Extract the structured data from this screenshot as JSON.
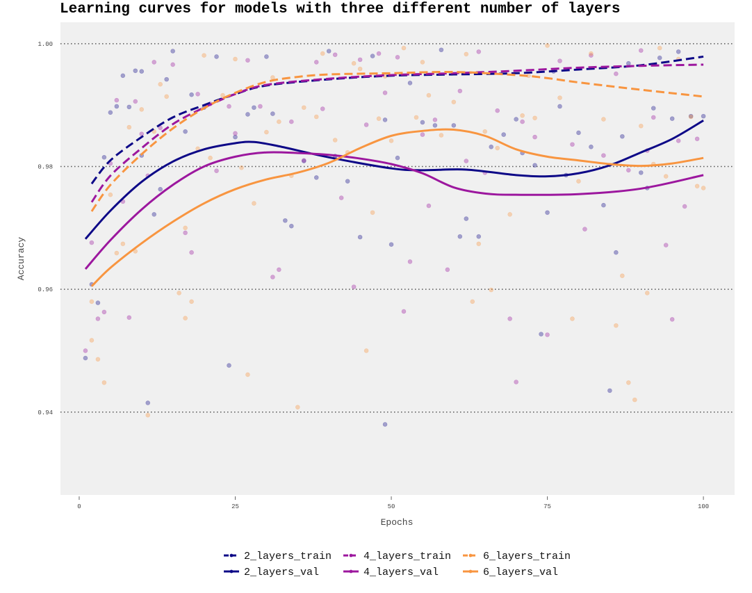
{
  "chart_data": {
    "type": "line",
    "title": "Learning curves for models with three different number of layers",
    "xlabel": "Epochs",
    "ylabel": "Accuracy",
    "xlim": [
      -3,
      105
    ],
    "ylim": [
      0.9265,
      1.0035
    ],
    "x_ticks": [
      0,
      25,
      50,
      75,
      100
    ],
    "x_tick_labels": [
      "0",
      "25",
      "50",
      "75",
      "100"
    ],
    "y_ticks": [
      0.94,
      0.96,
      0.98,
      1.0
    ],
    "y_tick_labels": [
      "0.94",
      "0.96",
      "0.98",
      "1.00"
    ],
    "grid": "horizontal dotted",
    "legend_position": "bottom",
    "series": [
      {
        "name": "2_layers_train",
        "color": "#0d0887",
        "dash": "dashed",
        "x": [
          2,
          5,
          10,
          15,
          20,
          25,
          30,
          40,
          50,
          60,
          70,
          80,
          90,
          100
        ],
        "y": [
          0.9772,
          0.981,
          0.9848,
          0.988,
          0.99,
          0.9918,
          0.9932,
          0.9942,
          0.9948,
          0.995,
          0.9952,
          0.9958,
          0.9965,
          0.9979
        ]
      },
      {
        "name": "4_layers_train",
        "color": "#9c179e",
        "dash": "dashed",
        "x": [
          2,
          5,
          10,
          15,
          20,
          25,
          30,
          40,
          50,
          60,
          70,
          80,
          90,
          100
        ],
        "y": [
          0.9742,
          0.9785,
          0.983,
          0.9869,
          0.9896,
          0.9918,
          0.9933,
          0.9943,
          0.9949,
          0.9952,
          0.9956,
          0.9961,
          0.9964,
          0.9966
        ]
      },
      {
        "name": "6_layers_train",
        "color": "#f89540",
        "dash": "dashed",
        "x": [
          2,
          5,
          10,
          15,
          20,
          25,
          30,
          35,
          40,
          50,
          60,
          70,
          75,
          80,
          90,
          100
        ],
        "y": [
          0.9727,
          0.977,
          0.982,
          0.9862,
          0.9895,
          0.992,
          0.9938,
          0.9946,
          0.995,
          0.9952,
          0.9954,
          0.9949,
          0.9944,
          0.9937,
          0.9925,
          0.9914
        ]
      },
      {
        "name": "2_layers_val",
        "color": "#0d0887",
        "dash": "solid",
        "x": [
          1,
          5,
          10,
          15,
          20,
          25,
          28,
          32,
          40,
          50,
          55,
          62,
          70,
          75,
          80,
          85,
          90,
          95,
          100
        ],
        "y": [
          0.9682,
          0.9728,
          0.9775,
          0.9808,
          0.9828,
          0.9838,
          0.984,
          0.9833,
          0.9815,
          0.9797,
          0.9794,
          0.9795,
          0.9786,
          0.9784,
          0.9789,
          0.9802,
          0.9823,
          0.9845,
          0.9875
        ]
      },
      {
        "name": "4_layers_val",
        "color": "#9c179e",
        "dash": "solid",
        "x": [
          1,
          5,
          10,
          15,
          20,
          25,
          30,
          35,
          40,
          45,
          50,
          55,
          60,
          65,
          70,
          80,
          90,
          100
        ],
        "y": [
          0.9633,
          0.968,
          0.973,
          0.977,
          0.98,
          0.9816,
          0.9823,
          0.9822,
          0.9819,
          0.9813,
          0.9804,
          0.9789,
          0.9766,
          0.9756,
          0.9754,
          0.9755,
          0.9764,
          0.9786
        ]
      },
      {
        "name": "6_layers_val",
        "color": "#f89540",
        "dash": "solid",
        "x": [
          2,
          5,
          10,
          15,
          20,
          25,
          30,
          35,
          40,
          45,
          50,
          55,
          60,
          65,
          70,
          75,
          80,
          85,
          90,
          95,
          100
        ],
        "y": [
          0.9605,
          0.9635,
          0.9675,
          0.971,
          0.974,
          0.9763,
          0.9779,
          0.979,
          0.9806,
          0.983,
          0.985,
          0.9858,
          0.986,
          0.985,
          0.9828,
          0.9816,
          0.981,
          0.9804,
          0.9801,
          0.9805,
          0.9814
        ]
      }
    ],
    "scatter": [
      {
        "name": "2_layers",
        "color": "#0d0887",
        "alpha": 0.35,
        "points": [
          [
            1,
            0.9488
          ],
          [
            2,
            0.9608
          ],
          [
            3,
            0.9578
          ],
          [
            4,
            0.9815
          ],
          [
            5,
            0.9888
          ],
          [
            6,
            0.9898
          ],
          [
            7,
            0.9948
          ],
          [
            8,
            0.9897
          ],
          [
            9,
            0.9956
          ],
          [
            10,
            0.9955
          ],
          [
            11,
            0.9415
          ],
          [
            12,
            0.9722
          ],
          [
            13,
            0.9763
          ],
          [
            14,
            0.9942
          ],
          [
            15,
            0.9988
          ],
          [
            17,
            0.9857
          ],
          [
            18,
            0.9917
          ],
          [
            20,
            0.9896
          ],
          [
            22,
            0.9979
          ],
          [
            24,
            0.9476
          ],
          [
            25,
            0.9848
          ],
          [
            27,
            0.9885
          ],
          [
            28,
            0.9896
          ],
          [
            30,
            0.9979
          ],
          [
            31,
            0.9886
          ],
          [
            33,
            0.9712
          ],
          [
            34,
            0.9703
          ],
          [
            36,
            0.9809
          ],
          [
            38,
            0.9782
          ],
          [
            40,
            0.9988
          ],
          [
            41,
            0.9817
          ],
          [
            43,
            0.9776
          ],
          [
            45,
            0.9685
          ],
          [
            47,
            0.998
          ],
          [
            49,
            0.9876
          ],
          [
            50,
            0.9673
          ],
          [
            51,
            0.9814
          ],
          [
            53,
            0.9936
          ],
          [
            55,
            0.9872
          ],
          [
            57,
            0.9867
          ],
          [
            58,
            0.999
          ],
          [
            60,
            0.9867
          ],
          [
            61,
            0.9686
          ],
          [
            62,
            0.9715
          ],
          [
            64,
            0.9686
          ],
          [
            66,
            0.9832
          ],
          [
            68,
            0.9852
          ],
          [
            70,
            0.9877
          ],
          [
            71,
            0.9822
          ],
          [
            73,
            0.9802
          ],
          [
            74,
            0.9527
          ],
          [
            75,
            0.9725
          ],
          [
            76,
            0.9955
          ],
          [
            77,
            0.9898
          ],
          [
            78,
            0.9786
          ],
          [
            80,
            0.9855
          ],
          [
            82,
            0.9832
          ],
          [
            84,
            0.9737
          ],
          [
            86,
            0.966
          ],
          [
            87,
            0.9849
          ],
          [
            88,
            0.9968
          ],
          [
            90,
            0.979
          ],
          [
            91,
            0.9765
          ],
          [
            92,
            0.9895
          ],
          [
            93,
            0.9977
          ],
          [
            95,
            0.9878
          ],
          [
            96,
            0.9987
          ],
          [
            98,
            0.9882
          ],
          [
            100,
            0.9882
          ],
          [
            85,
            0.9435
          ],
          [
            49,
            0.938
          ],
          [
            10,
            0.9818
          ]
        ]
      },
      {
        "name": "4_layers",
        "color": "#9c179e",
        "alpha": 0.35,
        "points": [
          [
            1,
            0.95
          ],
          [
            2,
            0.9676
          ],
          [
            3,
            0.9552
          ],
          [
            4,
            0.9563
          ],
          [
            5,
            0.9805
          ],
          [
            6,
            0.9908
          ],
          [
            7,
            0.9743
          ],
          [
            8,
            0.9554
          ],
          [
            9,
            0.9906
          ],
          [
            10,
            0.9853
          ],
          [
            11,
            0.9785
          ],
          [
            12,
            0.997
          ],
          [
            13,
            0.9863
          ],
          [
            15,
            0.9966
          ],
          [
            17,
            0.9692
          ],
          [
            18,
            0.966
          ],
          [
            19,
            0.9918
          ],
          [
            21,
            0.9902
          ],
          [
            22,
            0.9793
          ],
          [
            24,
            0.9898
          ],
          [
            25,
            0.9854
          ],
          [
            27,
            0.9973
          ],
          [
            29,
            0.9898
          ],
          [
            31,
            0.962
          ],
          [
            32,
            0.9632
          ],
          [
            34,
            0.9873
          ],
          [
            36,
            0.981
          ],
          [
            38,
            0.997
          ],
          [
            39,
            0.9894
          ],
          [
            41,
            0.9982
          ],
          [
            42,
            0.9749
          ],
          [
            44,
            0.9604
          ],
          [
            45,
            0.9974
          ],
          [
            46,
            0.9868
          ],
          [
            48,
            0.9984
          ],
          [
            49,
            0.992
          ],
          [
            51,
            0.9978
          ],
          [
            52,
            0.9564
          ],
          [
            53,
            0.9645
          ],
          [
            55,
            0.9852
          ],
          [
            56,
            0.9736
          ],
          [
            57,
            0.9876
          ],
          [
            59,
            0.9632
          ],
          [
            61,
            0.9923
          ],
          [
            62,
            0.9809
          ],
          [
            64,
            0.9987
          ],
          [
            65,
            0.979
          ],
          [
            67,
            0.9891
          ],
          [
            69,
            0.9552
          ],
          [
            70,
            0.9449
          ],
          [
            71,
            0.9873
          ],
          [
            73,
            0.9848
          ],
          [
            75,
            0.9526
          ],
          [
            77,
            0.9972
          ],
          [
            79,
            0.9836
          ],
          [
            81,
            0.9698
          ],
          [
            82,
            0.9981
          ],
          [
            84,
            0.9818
          ],
          [
            86,
            0.9951
          ],
          [
            88,
            0.9794
          ],
          [
            90,
            0.9989
          ],
          [
            91,
            0.9826
          ],
          [
            92,
            0.988
          ],
          [
            94,
            0.9672
          ],
          [
            95,
            0.9551
          ],
          [
            96,
            0.9842
          ],
          [
            97,
            0.9735
          ],
          [
            99,
            0.9845
          ]
        ]
      },
      {
        "name": "6_layers",
        "color": "#f89540",
        "alpha": 0.35,
        "points": [
          [
            2,
            0.958
          ],
          [
            2,
            0.9517
          ],
          [
            3,
            0.9486
          ],
          [
            4,
            0.9448
          ],
          [
            5,
            0.9754
          ],
          [
            6,
            0.9659
          ],
          [
            7,
            0.9674
          ],
          [
            8,
            0.9864
          ],
          [
            9,
            0.9662
          ],
          [
            10,
            0.9893
          ],
          [
            11,
            0.9395
          ],
          [
            12,
            0.9857
          ],
          [
            13,
            0.9934
          ],
          [
            14,
            0.9914
          ],
          [
            16,
            0.9594
          ],
          [
            17,
            0.9553
          ],
          [
            17,
            0.97
          ],
          [
            18,
            0.958
          ],
          [
            19,
            0.9829
          ],
          [
            20,
            0.9981
          ],
          [
            21,
            0.9814
          ],
          [
            23,
            0.9916
          ],
          [
            25,
            0.9975
          ],
          [
            26,
            0.9798
          ],
          [
            27,
            0.9461
          ],
          [
            28,
            0.974
          ],
          [
            30,
            0.9856
          ],
          [
            31,
            0.9945
          ],
          [
            32,
            0.9873
          ],
          [
            34,
            0.9785
          ],
          [
            35,
            0.9408
          ],
          [
            36,
            0.9896
          ],
          [
            38,
            0.9881
          ],
          [
            39,
            0.9984
          ],
          [
            41,
            0.9843
          ],
          [
            43,
            0.9823
          ],
          [
            44,
            0.9968
          ],
          [
            45,
            0.9959
          ],
          [
            46,
            0.95
          ],
          [
            47,
            0.9725
          ],
          [
            48,
            0.9878
          ],
          [
            49,
            0.9947
          ],
          [
            50,
            0.9842
          ],
          [
            52,
            0.9993
          ],
          [
            54,
            0.988
          ],
          [
            55,
            0.997
          ],
          [
            56,
            0.9916
          ],
          [
            58,
            0.9851
          ],
          [
            60,
            0.9905
          ],
          [
            62,
            0.9983
          ],
          [
            63,
            0.958
          ],
          [
            64,
            0.9674
          ],
          [
            65,
            0.9857
          ],
          [
            66,
            0.9599
          ],
          [
            67,
            0.983
          ],
          [
            69,
            0.9722
          ],
          [
            71,
            0.9883
          ],
          [
            72,
            0.9948
          ],
          [
            73,
            0.9879
          ],
          [
            75,
            0.9997
          ],
          [
            77,
            0.9912
          ],
          [
            79,
            0.9552
          ],
          [
            80,
            0.9776
          ],
          [
            82,
            0.9984
          ],
          [
            84,
            0.9877
          ],
          [
            86,
            0.9541
          ],
          [
            87,
            0.9622
          ],
          [
            88,
            0.9448
          ],
          [
            89,
            0.942
          ],
          [
            90,
            0.9866
          ],
          [
            91,
            0.9594
          ],
          [
            92,
            0.9804
          ],
          [
            93,
            0.9993
          ],
          [
            94,
            0.9784
          ],
          [
            96,
            0.9975
          ],
          [
            98,
            0.9881
          ],
          [
            99,
            0.9768
          ],
          [
            100,
            0.9765
          ]
        ]
      }
    ]
  }
}
